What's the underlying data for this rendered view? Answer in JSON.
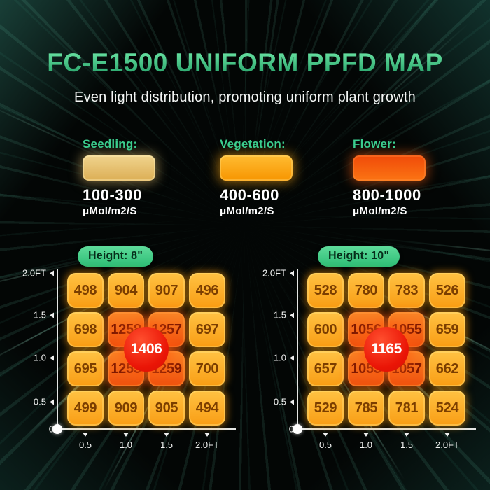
{
  "header": {
    "title": "FC-E1500 UNIFORM PPFD MAP",
    "subtitle": "Even light distribution, promoting uniform plant growth"
  },
  "legend": {
    "items": [
      {
        "label": "Seedling:",
        "range": "100-300",
        "unit": "μMol/m2/S",
        "swatch_color_top": "#f0d48e",
        "swatch_color_bottom": "#dcae55",
        "swatch_css": "background:linear-gradient(180deg,#f0d48e,#dcae55);box-shadow:inset 0 0 0 2px rgba(255,240,185,0.4), 0 0 16px 3px rgba(238,200,115,0.5)"
      },
      {
        "label": "Vegetation:",
        "range": "400-600",
        "unit": "μMol/m2/S",
        "swatch_color_top": "#ffbc32",
        "swatch_color_bottom": "#f79500",
        "swatch_css": "background:linear-gradient(180deg,#ffbc32,#f79500);box-shadow:inset 0 0 0 2px rgba(255,220,120,0.4), 0 0 16px 3px rgba(255,170,20,0.55)"
      },
      {
        "label": "Flower:",
        "range": "800-1000",
        "unit": "μMol/m2/S",
        "swatch_color_top": "#f04a09",
        "swatch_color_bottom": "#fb7413",
        "swatch_css": "background:linear-gradient(180deg,#f04a09,#fb7413);box-shadow:inset 0 0 0 2px rgba(255,150,70,0.35), 0 0 16px 3px rgba(250,95,18,0.55)"
      }
    ]
  },
  "chart_data": [
    {
      "type": "heatmap",
      "title": "Height: 8\"",
      "x_ticks": [
        "0.5",
        "1.0",
        "1.5",
        "2.0FT"
      ],
      "y_ticks": [
        "2.0FT",
        "1.5",
        "1.0",
        "0.5",
        "0"
      ],
      "xlim": [
        0,
        2
      ],
      "ylim": [
        0,
        2
      ],
      "unit": "μMol/m2/S",
      "rows": [
        [
          498,
          904,
          907,
          496
        ],
        [
          698,
          1258,
          1257,
          697
        ],
        [
          695,
          1255,
          1259,
          700
        ],
        [
          499,
          909,
          905,
          494
        ]
      ],
      "center_value": 1406
    },
    {
      "type": "heatmap",
      "title": "Height: 10\"",
      "x_ticks": [
        "0.5",
        "1.0",
        "1.5",
        "2.0FT"
      ],
      "y_ticks": [
        "2.0FT",
        "1.5",
        "1.0",
        "0.5",
        "0"
      ],
      "xlim": [
        0,
        2
      ],
      "ylim": [
        0,
        2
      ],
      "unit": "μMol/m2/S",
      "rows": [
        [
          528,
          780,
          783,
          526
        ],
        [
          600,
          1056,
          1055,
          659
        ],
        [
          657,
          1053,
          1057,
          662
        ],
        [
          529,
          785,
          781,
          524
        ]
      ],
      "center_value": 1165
    }
  ],
  "colors": {
    "accent_green": "#3bcd8e",
    "title_green_light": "#68e2a2",
    "title_green_dark": "#2aa56c",
    "cell_orange_top": "#ffc243",
    "cell_orange_bottom": "#f99d14",
    "cell_hot_top": "#fa8526",
    "cell_hot_bottom": "#ef4f0e",
    "cell_text": "#7b3e00",
    "cell_hot_text": "#7e1800",
    "badge_red": "#ea1506",
    "axis": "#e4e6e5",
    "background": "#030605"
  }
}
